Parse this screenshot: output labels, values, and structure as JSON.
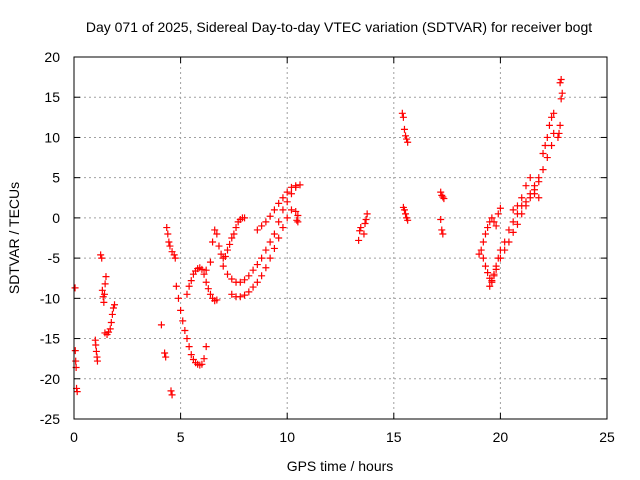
{
  "chart_data": {
    "type": "scatter",
    "title": "Day 071 of 2025, Sidereal Day-to-day VTEC variation (SDTVAR) for receiver bogt",
    "xlabel": "GPS time / hours",
    "ylabel": "SDTVAR / TECUs",
    "xlim": [
      0,
      25
    ],
    "ylim": [
      -25,
      20
    ],
    "xticks": [
      0,
      5,
      10,
      15,
      20,
      25
    ],
    "yticks": [
      -25,
      -20,
      -15,
      -10,
      -5,
      0,
      5,
      10,
      15,
      20
    ],
    "grid": true,
    "marker": "+",
    "color": "#ff0000",
    "series": [
      {
        "name": "s1",
        "x": [
          0.05,
          0.06,
          0.08,
          0.1,
          0.12,
          0.15
        ],
        "y": [
          -8.7,
          -16.5,
          -17.8,
          -18.6,
          -21.2,
          -21.6
        ]
      },
      {
        "name": "s2",
        "x": [
          1.0,
          1.02,
          1.05,
          1.08,
          1.1
        ],
        "y": [
          -15.2,
          -15.8,
          -16.6,
          -17.3,
          -17.8
        ]
      },
      {
        "name": "s3",
        "x": [
          1.25,
          1.3,
          1.33,
          1.37,
          1.4,
          1.43,
          1.46,
          1.5
        ],
        "y": [
          -4.6,
          -5.0,
          -9.0,
          -9.8,
          -10.5,
          -9.5,
          -8.2,
          -7.3
        ]
      },
      {
        "name": "s4",
        "x": [
          1.45,
          1.55,
          1.62,
          1.7,
          1.75,
          1.8,
          1.85,
          1.9
        ],
        "y": [
          -14.3,
          -14.5,
          -14.2,
          -13.8,
          -13.0,
          -12.0,
          -11.2,
          -10.8
        ]
      },
      {
        "name": "s5",
        "x": [
          4.1,
          4.25,
          4.3,
          4.35,
          4.4,
          4.45,
          4.5,
          4.6,
          4.7,
          4.75
        ],
        "y": [
          -13.3,
          -16.8,
          -17.3,
          -1.2,
          -2.0,
          -3.0,
          -3.5,
          -4.2,
          -4.6,
          -5.0
        ]
      },
      {
        "name": "s6",
        "x": [
          4.55,
          4.6
        ],
        "y": [
          -21.5,
          -22.0
        ]
      },
      {
        "name": "s7",
        "x": [
          4.8,
          4.9,
          5.0,
          5.1,
          5.2,
          5.3,
          5.4,
          5.5,
          5.6,
          5.7,
          5.8,
          5.9,
          6.0,
          6.1,
          6.2
        ],
        "y": [
          -8.5,
          -10.0,
          -11.5,
          -12.8,
          -14.0,
          -15.0,
          -16.0,
          -17.0,
          -17.6,
          -18.0,
          -18.2,
          -18.3,
          -18.2,
          -17.5,
          -16.0
        ]
      },
      {
        "name": "s8",
        "x": [
          5.3,
          5.4,
          5.5,
          5.6,
          5.7,
          5.8,
          5.9,
          6.0,
          6.1,
          6.2,
          6.3,
          6.4,
          6.5,
          6.6,
          6.7
        ],
        "y": [
          -9.5,
          -8.5,
          -7.8,
          -7.0,
          -6.6,
          -6.3,
          -6.2,
          -6.4,
          -7.0,
          -8.0,
          -8.8,
          -9.5,
          -10.0,
          -10.3,
          -10.2
        ]
      },
      {
        "name": "s9",
        "x": [
          6.2,
          6.4,
          6.5,
          6.6,
          6.7,
          6.8,
          6.9,
          7.0,
          7.1,
          7.2,
          7.3,
          7.4,
          7.5,
          7.6,
          7.7,
          7.8,
          7.9,
          8.0
        ],
        "y": [
          -6.5,
          -5.5,
          -3.0,
          -1.5,
          -2.0,
          -3.5,
          -4.5,
          -5.0,
          -4.8,
          -4.0,
          -3.3,
          -2.5,
          -2.0,
          -1.2,
          -0.5,
          -0.2,
          0.0,
          0.0
        ]
      },
      {
        "name": "s10",
        "x": [
          7.0,
          7.2,
          7.4,
          7.6,
          7.8,
          8.0,
          8.2,
          8.4,
          8.6,
          8.8,
          9.0,
          9.2,
          9.4,
          9.6,
          9.8,
          10.0,
          10.2,
          10.4
        ],
        "y": [
          -6.0,
          -7.0,
          -7.6,
          -8.0,
          -8.0,
          -7.7,
          -7.2,
          -6.5,
          -5.8,
          -5.0,
          -4.0,
          -3.0,
          -2.0,
          -0.5,
          1.0,
          2.0,
          3.0,
          3.8
        ]
      },
      {
        "name": "s11",
        "x": [
          7.4,
          7.6,
          7.8,
          8.0,
          8.2,
          8.4,
          8.6,
          8.8,
          9.0,
          9.2,
          9.4,
          9.6,
          9.8,
          10.0,
          10.2,
          10.5
        ],
        "y": [
          -9.5,
          -9.8,
          -9.8,
          -9.6,
          -9.2,
          -8.6,
          -8.0,
          -7.2,
          -6.2,
          -5.0,
          -3.8,
          -2.5,
          -1.2,
          0.0,
          1.0,
          0.3
        ]
      },
      {
        "name": "s12",
        "x": [
          8.6,
          8.8,
          9.0,
          9.2,
          9.4,
          9.6,
          9.8,
          10.0,
          10.2,
          10.4,
          10.6
        ],
        "y": [
          -1.5,
          -1.0,
          -0.5,
          0.2,
          1.0,
          1.8,
          2.5,
          3.2,
          3.8,
          4.0,
          4.1
        ]
      },
      {
        "name": "s13",
        "x": [
          10.4,
          10.45,
          10.5
        ],
        "y": [
          0.8,
          -0.3,
          -0.5
        ]
      },
      {
        "name": "s14",
        "x": [
          13.35,
          13.4,
          13.45,
          13.6,
          13.65,
          13.7,
          13.75
        ],
        "y": [
          -2.8,
          -1.6,
          -1.2,
          -2.0,
          -0.7,
          -0.2,
          0.5
        ]
      },
      {
        "name": "s15",
        "x": [
          15.4,
          15.45,
          15.5,
          15.55,
          15.6,
          15.65
        ],
        "y": [
          13.0,
          12.5,
          11.0,
          10.2,
          9.8,
          9.4
        ]
      },
      {
        "name": "s16",
        "x": [
          15.45,
          15.5,
          15.55,
          15.6,
          15.65
        ],
        "y": [
          1.3,
          1.0,
          0.5,
          0.0,
          -0.3
        ]
      },
      {
        "name": "s17",
        "x": [
          17.2,
          17.25,
          17.3,
          17.35,
          17.2,
          17.25,
          17.3
        ],
        "y": [
          3.2,
          2.8,
          2.6,
          2.4,
          -0.2,
          -1.5,
          -2.0
        ]
      },
      {
        "name": "s18",
        "x": [
          19.2,
          19.3,
          19.4,
          19.5,
          19.6,
          19.7,
          19.8,
          19.9,
          20.0,
          20.2,
          20.4,
          20.6,
          20.8,
          21.0,
          21.2,
          21.4,
          21.6,
          21.8,
          22.0,
          22.2,
          22.4,
          22.5
        ],
        "y": [
          -5.0,
          -6.0,
          -6.8,
          -7.5,
          -7.8,
          -7.0,
          -6.0,
          -5.0,
          -4.0,
          -3.0,
          -1.5,
          -0.5,
          0.5,
          1.5,
          2.0,
          3.0,
          4.0,
          5.0,
          6.0,
          7.5,
          9.0,
          10.5
        ]
      },
      {
        "name": "s19",
        "x": [
          19.0,
          19.1,
          19.2,
          19.3,
          19.4,
          19.5,
          19.6,
          19.7,
          19.8,
          19.9,
          20.0
        ],
        "y": [
          -4.5,
          -4.0,
          -3.0,
          -2.0,
          -1.2,
          -0.5,
          0.0,
          -0.5,
          -1.0,
          0.5,
          1.2
        ]
      },
      {
        "name": "s20",
        "x": [
          19.5,
          19.6,
          19.7,
          19.8,
          20.0,
          20.2,
          20.4,
          20.6,
          20.8,
          21.0,
          21.2,
          21.4,
          21.6,
          21.8
        ],
        "y": [
          -8.5,
          -8.0,
          -7.2,
          -6.4,
          -5.0,
          -4.0,
          -3.0,
          -1.8,
          -0.8,
          0.5,
          1.5,
          2.5,
          3.5,
          4.5
        ]
      },
      {
        "name": "s21",
        "x": [
          20.6,
          20.8,
          21.0,
          21.2,
          21.4,
          21.6,
          21.8
        ],
        "y": [
          1.0,
          1.5,
          2.5,
          4.0,
          5.0,
          3.0,
          2.5
        ]
      },
      {
        "name": "s22",
        "x": [
          22.0,
          22.1,
          22.2,
          22.3,
          22.4,
          22.5
        ],
        "y": [
          8.0,
          9.0,
          10.0,
          11.5,
          12.5,
          13.0
        ]
      },
      {
        "name": "s23",
        "x": [
          22.7,
          22.75,
          22.8,
          22.85,
          22.9,
          22.8,
          22.85
        ],
        "y": [
          10.0,
          10.5,
          11.5,
          14.8,
          15.5,
          16.8,
          17.2
        ]
      }
    ]
  }
}
